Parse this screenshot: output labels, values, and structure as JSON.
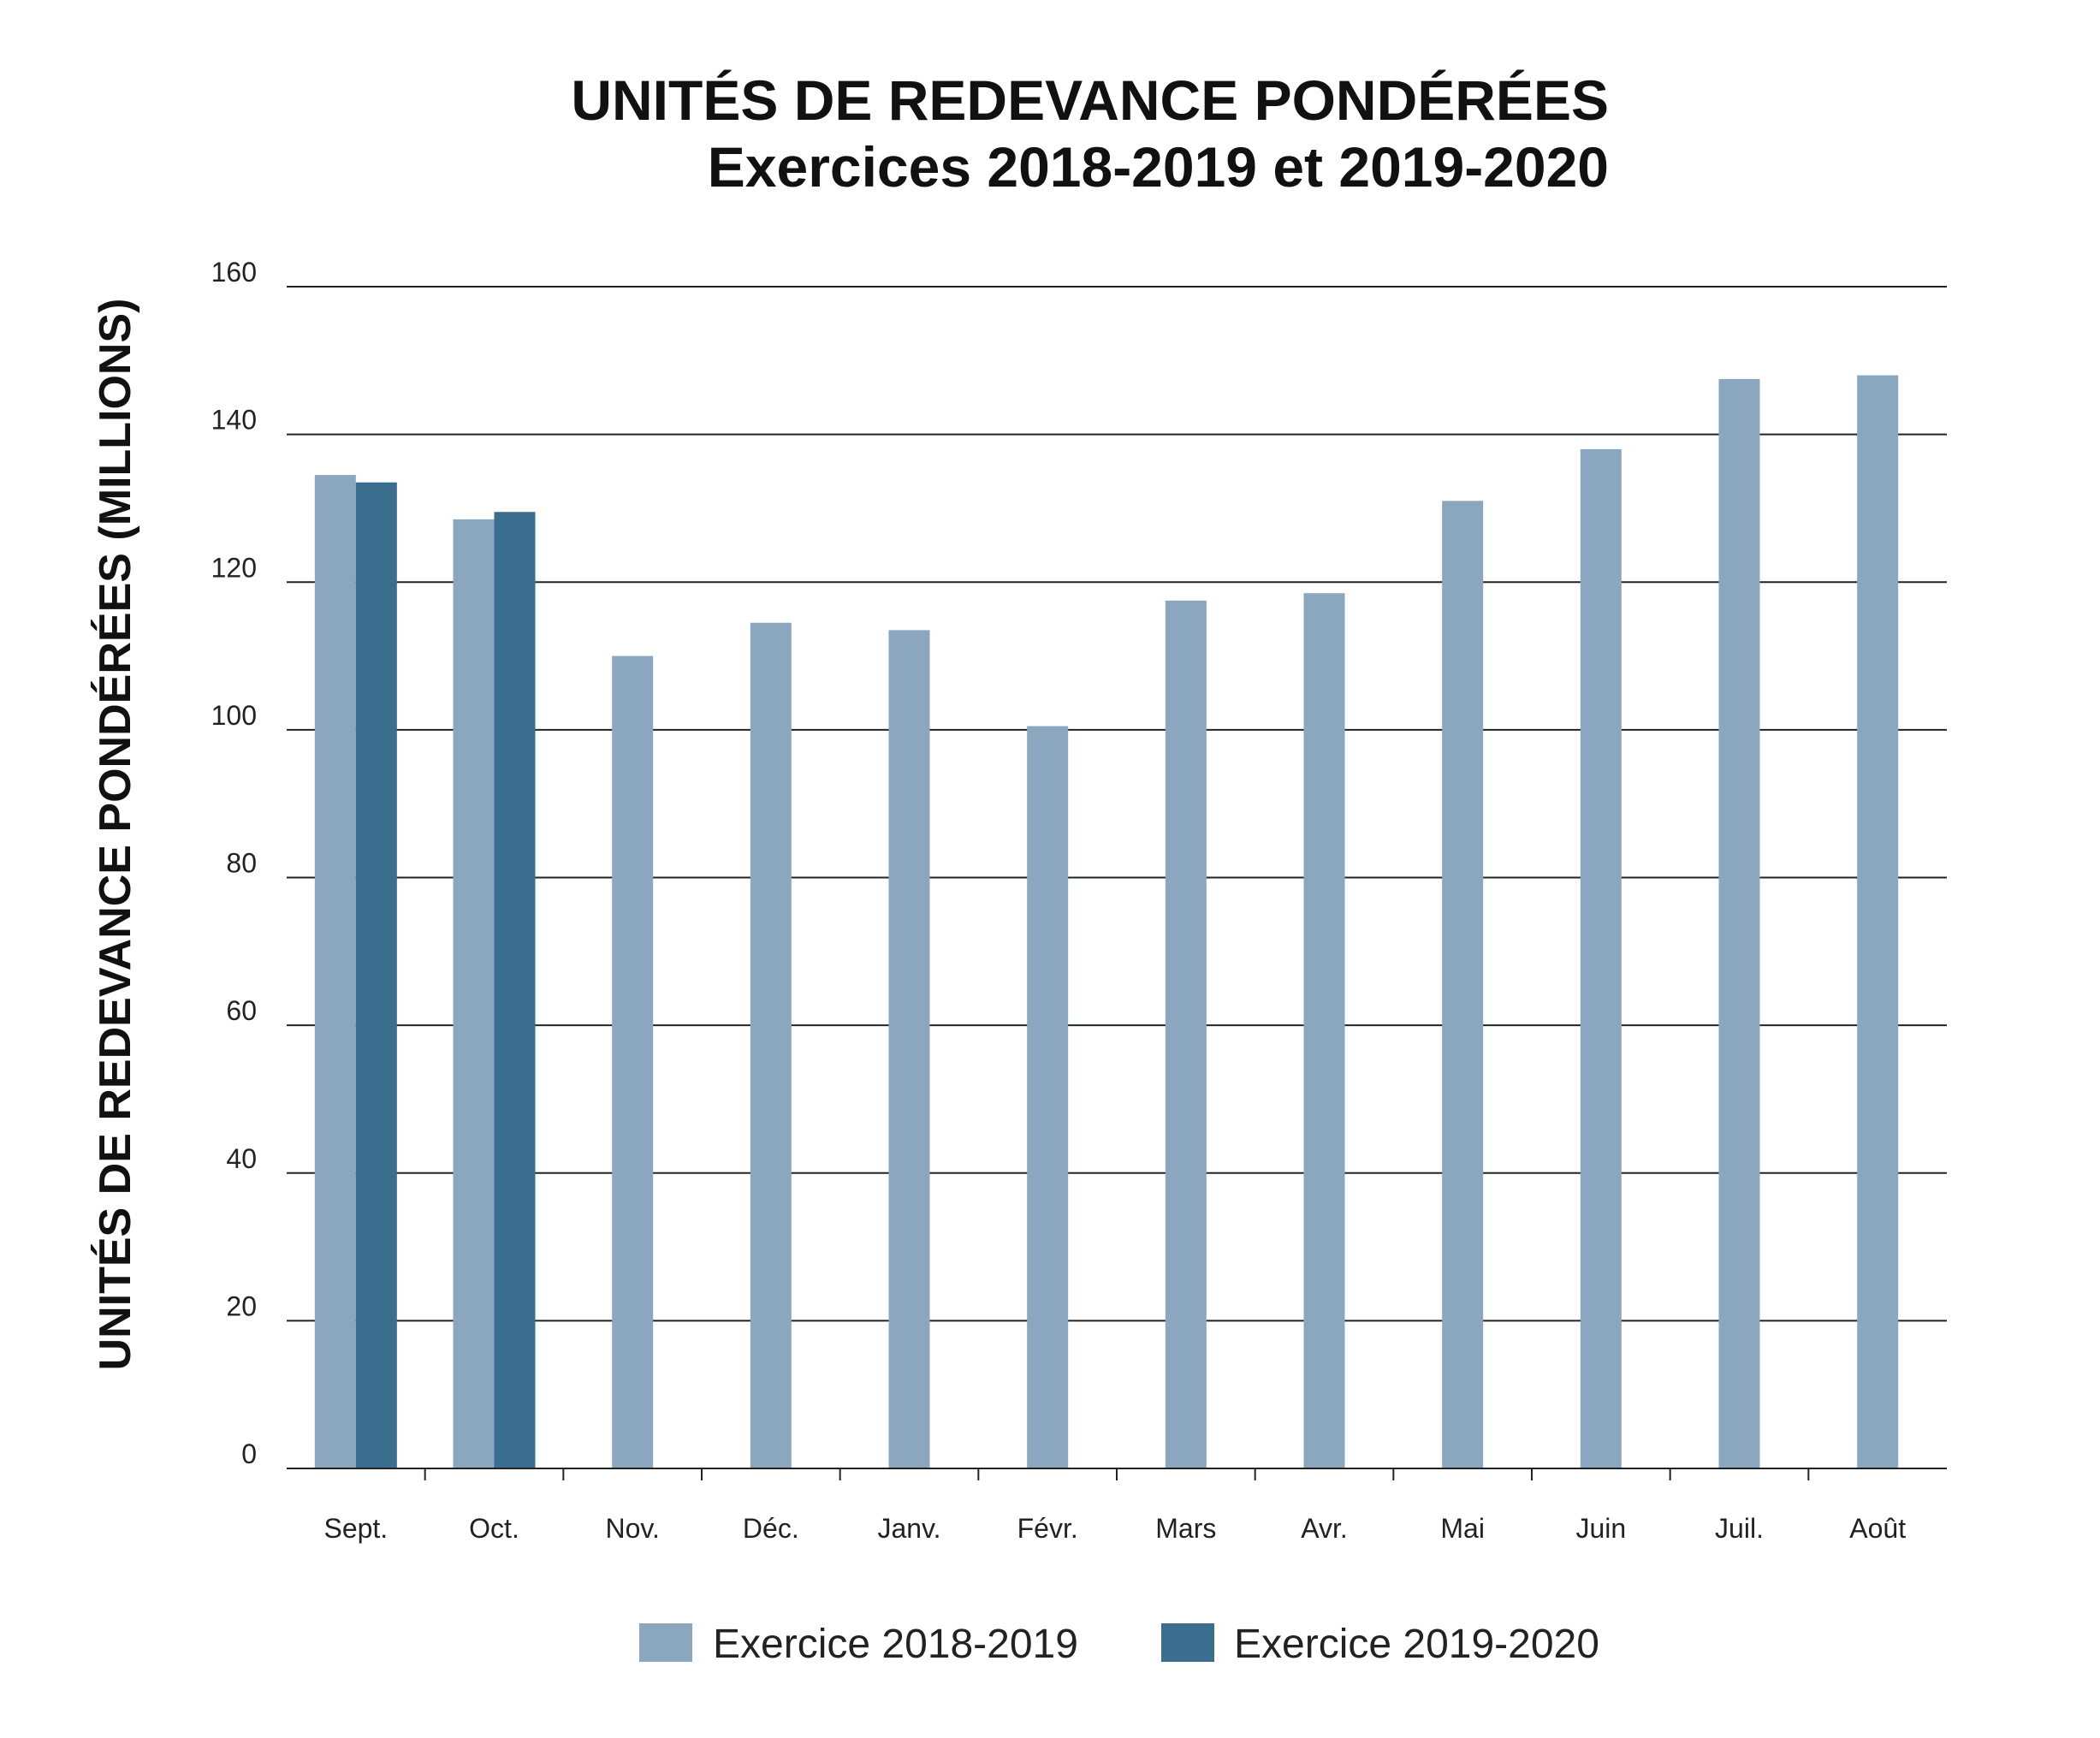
{
  "chart_data": {
    "type": "bar",
    "title": "UNITÉS DE REDEVANCE PONDÉRÉES",
    "subtitle": "Exercices 2018-2019 et 2019-2020",
    "xlabel": "",
    "ylabel": "UNITÉS DE REDEVANCE PONDÉRÉES (MILLIONS)",
    "ylim": [
      0,
      160
    ],
    "yticks": [
      "0",
      "20",
      "40",
      "60",
      "80",
      "100",
      "120",
      "140",
      "160"
    ],
    "grid": true,
    "legend_position": "bottom",
    "categories": [
      "Sept.",
      "Oct.",
      "Nov.",
      "Déc.",
      "Janv.",
      "Févr.",
      "Mars",
      "Avr.",
      "Mai",
      "Juin",
      "Juil.",
      "Août"
    ],
    "series": [
      {
        "name": "Exercice 2018-2019",
        "color": "#8ba7c0",
        "values": [
          134.5,
          128.5,
          110,
          114.5,
          113.5,
          100.5,
          117.5,
          118.5,
          131,
          138,
          147.5,
          148
        ]
      },
      {
        "name": "Exercice 2019-2020",
        "color": "#3b6e8e",
        "values": [
          133.5,
          129.5,
          null,
          null,
          null,
          null,
          null,
          null,
          null,
          null,
          null,
          null
        ]
      }
    ]
  }
}
